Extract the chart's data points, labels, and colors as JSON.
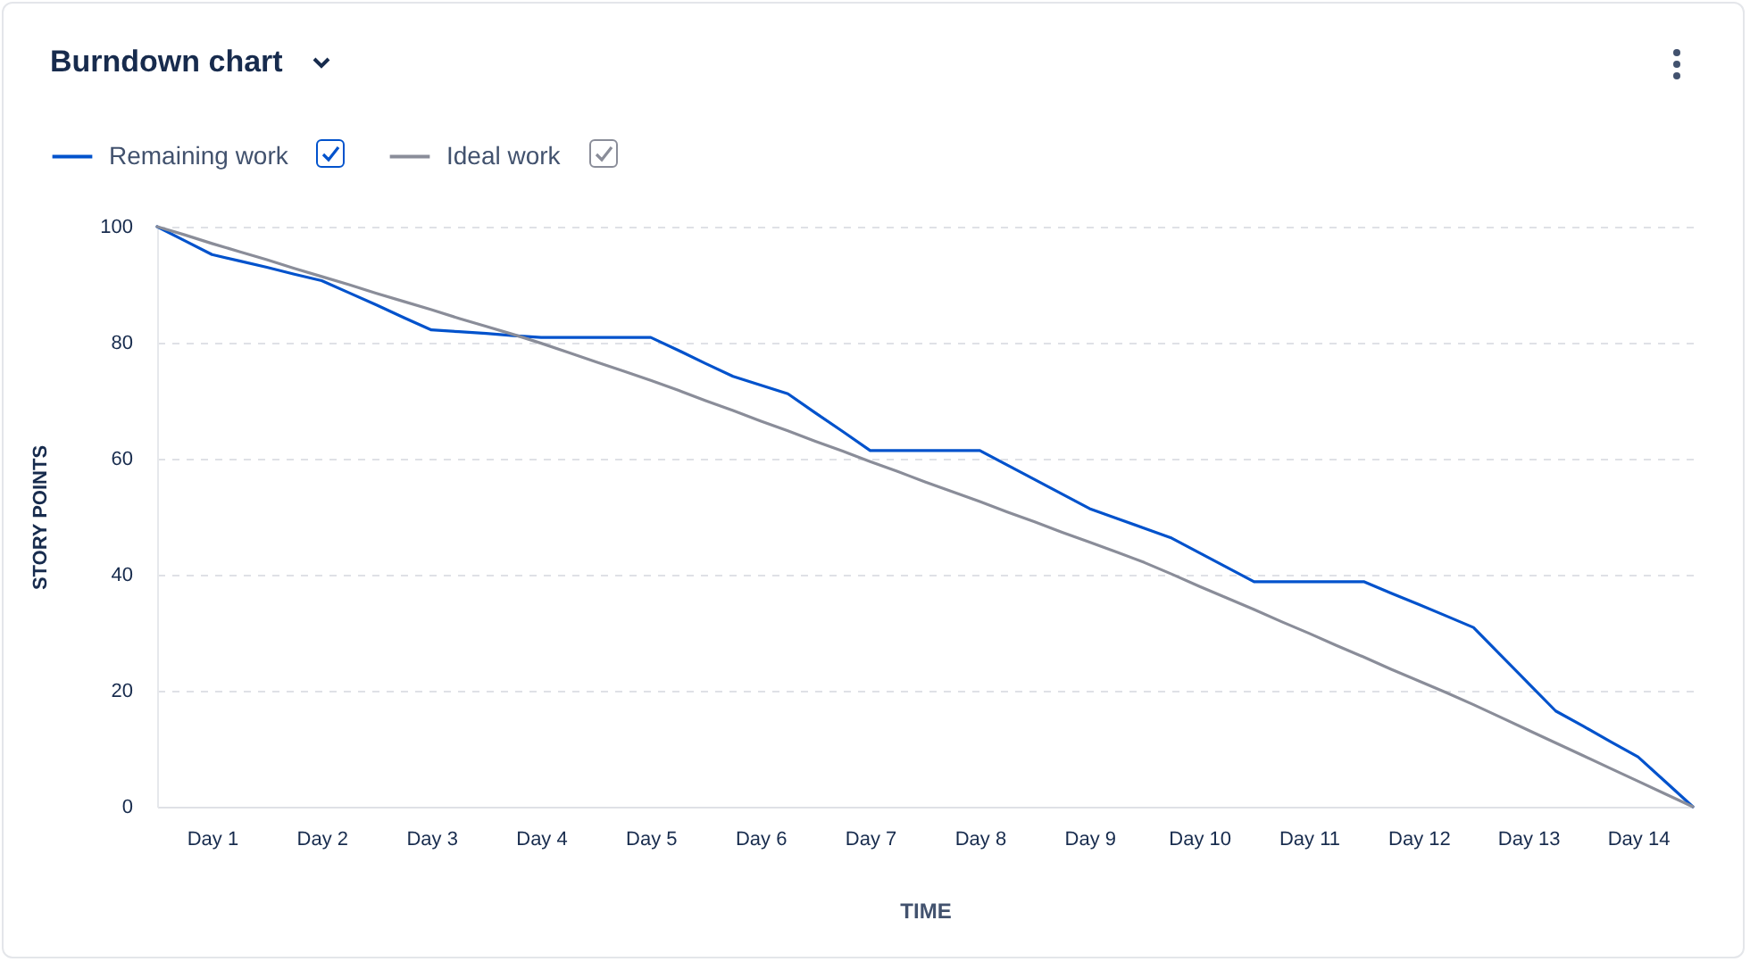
{
  "chart_data": {
    "type": "line",
    "title": "Burndown chart",
    "xlabel": "TIME",
    "ylabel": "STORY POINTS",
    "categories": [
      null,
      null,
      "Day 1",
      null,
      null,
      null,
      "Day 2",
      null,
      null,
      null,
      "Day 3",
      null,
      null,
      null,
      "Day 4",
      null,
      null,
      null,
      "Day 5",
      null,
      null,
      null,
      "Day 6",
      null,
      null,
      null,
      "Day 7",
      null,
      null,
      null,
      "Day 8",
      null,
      null,
      null,
      "Day 9",
      null,
      null,
      null,
      "Day 10",
      null,
      null,
      null,
      "Day 11",
      null,
      null,
      null,
      "Day 12",
      null,
      null,
      null,
      "Day 13",
      null,
      null,
      null,
      "Day 14",
      null,
      null
    ],
    "ylim": [
      0,
      100
    ],
    "yticks": [
      0,
      20,
      40,
      60,
      80,
      100
    ],
    "grid": "y",
    "legend": "top left",
    "series": [
      {
        "name": "Remaining work",
        "color": "#0052cc",
        "values": [
          100,
          97.6,
          95.2,
          94.1,
          93,
          91.8,
          90.7,
          88.6,
          86.5,
          84.3,
          82.2,
          81.9,
          81.6,
          81.2,
          80.9,
          80.9,
          80.9,
          80.9,
          80.9,
          78.7,
          76.4,
          74.2,
          72.7,
          71.2,
          67.9,
          64.7,
          61.4,
          61.4,
          61.4,
          61.4,
          61.4,
          58.9,
          56.4,
          53.9,
          51.4,
          49.7,
          48,
          46.3,
          43.8,
          41.3,
          38.8,
          38.8,
          38.8,
          38.8,
          38.8,
          36.8,
          34.9,
          32.9,
          30.9,
          26.1,
          21.3,
          16.5,
          13.9,
          11.2,
          8.6,
          4.3,
          0
        ]
      },
      {
        "name": "Ideal work",
        "color": "#8a8d99",
        "values": [
          100,
          98.6,
          97.1,
          95.7,
          94.3,
          92.8,
          91.4,
          90,
          88.5,
          87.1,
          85.7,
          84.2,
          82.8,
          81.4,
          79.9,
          78.3,
          76.7,
          75.1,
          73.5,
          71.8,
          70,
          68.3,
          66.5,
          64.8,
          63,
          61.3,
          59.5,
          57.8,
          56,
          54.3,
          52.6,
          50.8,
          49.1,
          47.3,
          45.6,
          43.9,
          42.1,
          40.1,
          38,
          36,
          34,
          31.9,
          29.9,
          27.8,
          25.8,
          23.7,
          21.7,
          19.7,
          17.6,
          15.4,
          13.2,
          11,
          8.8,
          6.6,
          4.4,
          2.2,
          0
        ]
      }
    ]
  }
}
